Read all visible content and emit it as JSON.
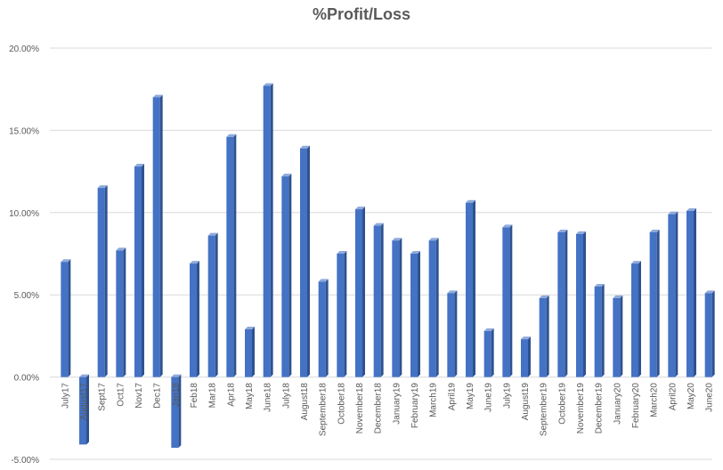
{
  "chart_data": {
    "type": "bar",
    "title": "%Profit/Loss",
    "xlabel": "",
    "ylabel": "",
    "ylim": [
      -0.05,
      0.2
    ],
    "yticks": [
      -0.05,
      0.0,
      0.05,
      0.1,
      0.15,
      0.2
    ],
    "ytick_labels": [
      "-5.00%",
      "0.00%",
      "5.00%",
      "10.00%",
      "15.00%",
      "20.00%"
    ],
    "grid": true,
    "legend": "none",
    "colors": {
      "bar_front": "#4472c4",
      "bar_side": "#2f528f",
      "bar_top": "#8faadc",
      "grid": "#d9d9d9",
      "text": "#595959"
    },
    "categories": [
      "July17",
      "August17",
      "Sept17",
      "Oct17",
      "Nov17",
      "Dec17",
      "Jan18",
      "Feb18",
      "Mar18",
      "Apr18",
      "May18",
      "June18",
      "July18",
      "August18",
      "September18",
      "October18",
      "November18",
      "December18",
      "January19",
      "February19",
      "March19",
      "April19",
      "May19",
      "June19",
      "July19",
      "August19",
      "September19",
      "October19",
      "November19",
      "December19",
      "January20",
      "February20",
      "March20",
      "April20",
      "May20",
      "June20"
    ],
    "values": [
      0.07,
      -0.041,
      0.115,
      0.077,
      0.128,
      0.17,
      -0.043,
      0.069,
      0.086,
      0.146,
      0.029,
      0.177,
      0.122,
      0.139,
      0.058,
      0.075,
      0.102,
      0.092,
      0.083,
      0.075,
      0.083,
      0.051,
      0.106,
      0.028,
      0.091,
      0.023,
      0.048,
      0.088,
      0.087,
      0.055,
      0.048,
      0.069,
      0.088,
      0.099,
      0.101,
      0.051
    ]
  }
}
